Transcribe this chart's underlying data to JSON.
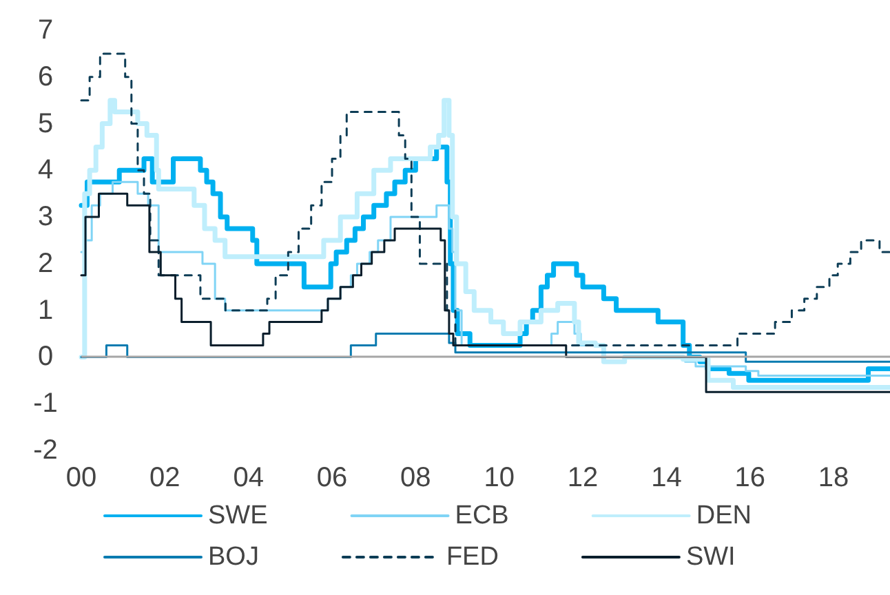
{
  "chart_data": {
    "type": "step",
    "xlim": [
      2000,
      2019.35
    ],
    "ylim": [
      -2,
      7
    ],
    "xticks": [
      {
        "value": 2000,
        "label": "00"
      },
      {
        "value": 2002,
        "label": "02"
      },
      {
        "value": 2004,
        "label": "04"
      },
      {
        "value": 2006,
        "label": "06"
      },
      {
        "value": 2008,
        "label": "08"
      },
      {
        "value": 2010,
        "label": "10"
      },
      {
        "value": 2012,
        "label": "12"
      },
      {
        "value": 2014,
        "label": "14"
      },
      {
        "value": 2016,
        "label": "16"
      },
      {
        "value": 2018,
        "label": "18"
      }
    ],
    "yticks": [
      -2,
      -1,
      0,
      1,
      2,
      3,
      4,
      5,
      6,
      7
    ],
    "grid": false,
    "legend": "bottom",
    "marker": "none",
    "ref_lines": [
      {
        "axis": "y",
        "value": 0,
        "color": "#a6a6a6"
      }
    ],
    "series": [
      {
        "name": "SWE",
        "color": "#00b0f0",
        "line_style": "solid",
        "x": [
          2000,
          2000.14,
          2000.91,
          2001.5,
          2001.7,
          2002.2,
          2002.85,
          2003.0,
          2003.15,
          2003.33,
          2003.49,
          2004.1,
          2004.2,
          2005.33,
          2005.97,
          2006.1,
          2006.35,
          2006.55,
          2006.75,
          2007.0,
          2007.3,
          2007.5,
          2007.75,
          2008.0,
          2008.5,
          2008.75,
          2008.83,
          2008.9,
          2009.0,
          2009.3,
          2010.5,
          2010.65,
          2010.8,
          2011.0,
          2011.15,
          2011.3,
          2011.85,
          2012.0,
          2012.5,
          2012.8,
          2013.8,
          2014.4,
          2014.55,
          2014.8,
          2014.98,
          2015.5,
          2015.97,
          2018.83,
          2019.35
        ],
        "values": [
          3.25,
          3.75,
          4.0,
          4.25,
          3.75,
          4.25,
          4.0,
          3.75,
          3.5,
          3.0,
          2.75,
          2.5,
          2.0,
          1.5,
          2.0,
          2.25,
          2.5,
          2.75,
          3.0,
          3.25,
          3.5,
          3.75,
          4.0,
          4.25,
          4.5,
          3.75,
          2.0,
          1.0,
          0.5,
          0.25,
          0.5,
          0.75,
          1.0,
          1.5,
          1.75,
          2.0,
          1.75,
          1.5,
          1.25,
          1.0,
          0.75,
          0.25,
          0.0,
          -0.1,
          -0.25,
          -0.35,
          -0.5,
          -0.25,
          -0.25
        ]
      },
      {
        "name": "ECB",
        "color": "#80d4f5",
        "line_style": "solid",
        "x": [
          2000,
          2000.1,
          2000.25,
          2000.45,
          2000.75,
          2001.35,
          2001.6,
          2001.85,
          2002.9,
          2003.2,
          2003.44,
          2005.9,
          2006.2,
          2006.45,
          2006.6,
          2006.9,
          2007.1,
          2007.4,
          2008.5,
          2008.8,
          2008.88,
          2008.95,
          2009.1,
          2011.25,
          2011.4,
          2011.8,
          2011.95,
          2012.5,
          2014.45,
          2014.7,
          2015.9,
          2016.2,
          2019.35
        ],
        "values": [
          2.25,
          2.5,
          3.25,
          3.5,
          3.75,
          3.5,
          3.25,
          2.25,
          2.0,
          1.25,
          1.0,
          1.25,
          1.5,
          1.75,
          2.0,
          2.25,
          2.5,
          3.0,
          3.25,
          2.75,
          2.25,
          1.0,
          0.25,
          0.5,
          0.75,
          0.5,
          0.25,
          0.0,
          -0.1,
          -0.2,
          -0.3,
          -0.4,
          -0.4
        ]
      },
      {
        "name": "DEN",
        "color": "#bfeefc",
        "line_style": "solid",
        "x": [
          2000,
          2000.08,
          2000.2,
          2000.35,
          2000.5,
          2000.69,
          2000.8,
          2001.35,
          2001.57,
          2001.8,
          2001.85,
          2002.7,
          2002.95,
          2003.2,
          2003.44,
          2005.8,
          2006.2,
          2006.6,
          2007.0,
          2007.4,
          2008.35,
          2008.55,
          2008.68,
          2008.8,
          2008.88,
          2008.98,
          2009.2,
          2009.4,
          2009.8,
          2010.1,
          2010.5,
          2011.0,
          2011.4,
          2011.8,
          2011.9,
          2012.3,
          2012.5,
          2013.0,
          2014.4,
          2015.0,
          2015.6,
          2019.35
        ],
        "values": [
          0.0,
          3.5,
          4.0,
          4.5,
          5.0,
          5.5,
          5.25,
          5.0,
          4.75,
          4.0,
          3.6,
          3.25,
          2.75,
          2.5,
          2.15,
          2.5,
          3.0,
          3.5,
          4.0,
          4.25,
          4.5,
          4.75,
          5.5,
          4.75,
          3.0,
          2.0,
          1.4,
          1.0,
          0.75,
          0.5,
          0.75,
          1.0,
          1.15,
          0.75,
          0.3,
          0.25,
          -0.1,
          0.0,
          -0.05,
          -0.5,
          -0.65,
          -0.65
        ]
      },
      {
        "name": "BOJ",
        "color": "#0a7bb0",
        "line_style": "solid",
        "x": [
          2000,
          2000.6,
          2001.1,
          2006.45,
          2007.05,
          2008.8,
          2008.95,
          2015.9,
          2019.35
        ],
        "values": [
          0.0,
          0.25,
          0.0,
          0.25,
          0.5,
          0.3,
          0.1,
          -0.1,
          -0.1
        ]
      },
      {
        "name": "FED",
        "color": "#0d3d56",
        "line_style": "dashed",
        "x": [
          2000,
          2000.2,
          2000.45,
          2001.05,
          2001.2,
          2001.35,
          2001.5,
          2001.65,
          2001.85,
          2002.85,
          2003.45,
          2004.45,
          2004.65,
          2004.95,
          2005.2,
          2005.5,
          2005.75,
          2006.0,
          2006.2,
          2006.35,
          2007.6,
          2007.75,
          2007.9,
          2008.1,
          2008.75,
          2008.95,
          2015.7,
          2016.6,
          2017.0,
          2017.3,
          2017.6,
          2017.9,
          2018.1,
          2018.4,
          2018.66,
          2019.1,
          2019.35
        ],
        "values": [
          5.5,
          6.0,
          6.5,
          6.0,
          5.0,
          4.0,
          3.5,
          2.5,
          1.75,
          1.25,
          1.0,
          1.25,
          1.75,
          2.25,
          2.75,
          3.25,
          3.75,
          4.25,
          4.75,
          5.25,
          4.75,
          4.25,
          3.0,
          2.0,
          1.0,
          0.25,
          0.5,
          0.75,
          1.0,
          1.25,
          1.5,
          1.75,
          2.0,
          2.25,
          2.5,
          2.25,
          2.25
        ]
      },
      {
        "name": "SWI",
        "color": "#0a1e2c",
        "line_style": "solid",
        "x": [
          2000,
          2000.1,
          2000.42,
          2001.1,
          2001.63,
          2001.9,
          2002.25,
          2002.4,
          2003.1,
          2004.35,
          2004.5,
          2005.75,
          2005.9,
          2006.2,
          2006.5,
          2006.7,
          2006.95,
          2007.25,
          2007.5,
          2008.6,
          2008.7,
          2008.8,
          2008.9,
          2011.6,
          2014.95,
          2019.35
        ],
        "values": [
          1.75,
          3.0,
          3.5,
          3.25,
          2.25,
          1.75,
          1.25,
          0.75,
          0.25,
          0.5,
          0.75,
          1.0,
          1.25,
          1.5,
          1.75,
          2.0,
          2.25,
          2.5,
          2.75,
          2.5,
          1.0,
          0.5,
          0.25,
          0.0,
          -0.75,
          -0.75
        ]
      }
    ]
  }
}
